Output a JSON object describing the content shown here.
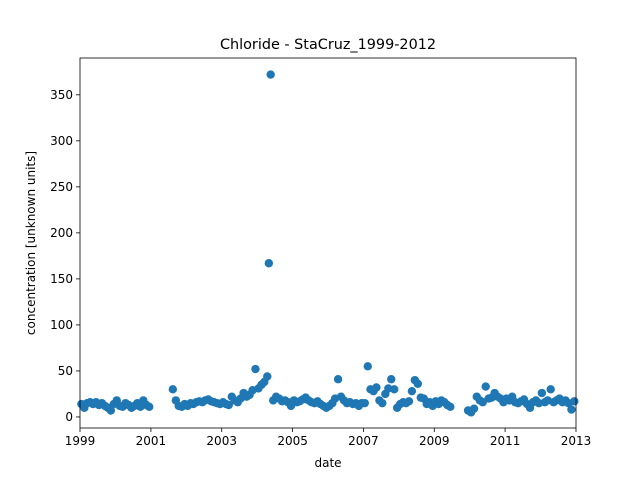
{
  "chart_data": {
    "type": "scatter",
    "title": "Chloride - StaCruz_1999-2012",
    "xlabel": "date",
    "ylabel": "concentration [unknown units]",
    "xlim": [
      "1999-01-01",
      "2013-01-01"
    ],
    "ylim": [
      -12,
      390
    ],
    "x_ticks": [
      "1999",
      "2001",
      "2003",
      "2005",
      "2007",
      "2009",
      "2011",
      "2013"
    ],
    "y_ticks": [
      0,
      50,
      100,
      150,
      200,
      250,
      300,
      350
    ],
    "grid": false,
    "marker_color": "#1f77b4",
    "series": [
      {
        "x": [
          "1999-01-15",
          "1999-02-15",
          "1999-03-15",
          "1999-04-15",
          "1999-05-15",
          "1999-06-15",
          "1999-07-15",
          "1999-08-15",
          "1999-09-15",
          "1999-10-15",
          "1999-11-15",
          "1999-12-15",
          "2000-01-15",
          "2000-02-15",
          "2000-03-15",
          "2000-04-15",
          "2000-05-15",
          "2000-06-15",
          "2000-07-15",
          "2000-08-15",
          "2000-09-15",
          "2000-10-15",
          "2000-11-15",
          "2000-12-15",
          "2001-08-15",
          "2001-09-15",
          "2001-10-15",
          "2001-11-15",
          "2001-12-15",
          "2002-01-15",
          "2002-02-15",
          "2002-03-15",
          "2002-04-15",
          "2002-05-15",
          "2002-06-15",
          "2002-07-15",
          "2002-08-15",
          "2002-09-15",
          "2002-10-15",
          "2002-11-15",
          "2002-12-15",
          "2003-01-15",
          "2003-02-15",
          "2003-03-15",
          "2003-04-15",
          "2003-05-15",
          "2003-06-15",
          "2003-07-15",
          "2003-08-15",
          "2003-09-15",
          "2003-10-15",
          "2003-11-15",
          "2003-12-15",
          "2004-01-15",
          "2004-02-15",
          "2004-03-15",
          "2004-04-15",
          "2004-05-01",
          "2004-05-20",
          "2004-06-15",
          "2004-07-15",
          "2004-08-15",
          "2004-09-15",
          "2004-10-15",
          "2004-11-15",
          "2004-12-15",
          "2005-01-15",
          "2005-02-15",
          "2005-03-15",
          "2005-04-15",
          "2005-05-15",
          "2005-06-15",
          "2005-07-15",
          "2005-08-15",
          "2005-09-15",
          "2005-10-15",
          "2005-11-15",
          "2005-12-15",
          "2006-01-15",
          "2006-02-15",
          "2006-03-15",
          "2006-04-15",
          "2006-05-15",
          "2006-06-15",
          "2006-07-15",
          "2006-08-15",
          "2006-09-15",
          "2006-10-15",
          "2006-11-15",
          "2006-12-15",
          "2007-01-15",
          "2007-02-15",
          "2007-03-15",
          "2007-04-15",
          "2007-05-15",
          "2007-06-15",
          "2007-07-15",
          "2007-08-15",
          "2007-09-15",
          "2007-10-15",
          "2007-11-15",
          "2007-12-15",
          "2008-01-15",
          "2008-02-15",
          "2008-03-15",
          "2008-04-15",
          "2008-05-15",
          "2008-06-15",
          "2008-07-15",
          "2008-08-15",
          "2008-09-15",
          "2008-10-15",
          "2008-11-15",
          "2008-12-15",
          "2009-01-15",
          "2009-02-15",
          "2009-03-15",
          "2009-04-15",
          "2009-05-15",
          "2009-06-15",
          "2009-12-15",
          "2010-01-15",
          "2010-02-15",
          "2010-03-15",
          "2010-04-15",
          "2010-05-15",
          "2010-06-15",
          "2010-07-15",
          "2010-08-15",
          "2010-09-15",
          "2010-10-15",
          "2010-11-15",
          "2010-12-15",
          "2011-01-15",
          "2011-02-15",
          "2011-03-15",
          "2011-04-15",
          "2011-05-15",
          "2011-06-15",
          "2011-07-15",
          "2011-08-15",
          "2011-09-15",
          "2011-10-15",
          "2011-11-15",
          "2011-12-15",
          "2012-01-15",
          "2012-02-15",
          "2012-03-15",
          "2012-04-15",
          "2012-05-15",
          "2012-06-15",
          "2012-07-15",
          "2012-08-15",
          "2012-09-15",
          "2012-10-15",
          "2012-11-15",
          "2012-12-15"
        ],
        "y": [
          14,
          10,
          15,
          16,
          14,
          16,
          13,
          15,
          12,
          10,
          7,
          14,
          18,
          12,
          11,
          15,
          13,
          10,
          12,
          15,
          11,
          18,
          13,
          11,
          30,
          18,
          12,
          11,
          14,
          12,
          15,
          14,
          16,
          17,
          16,
          18,
          19,
          17,
          16,
          15,
          14,
          16,
          14,
          13,
          22,
          18,
          16,
          20,
          26,
          22,
          24,
          29,
          52,
          31,
          35,
          38,
          44,
          167,
          372,
          18,
          22,
          20,
          17,
          18,
          16,
          12,
          18,
          16,
          17,
          19,
          21,
          18,
          16,
          15,
          17,
          14,
          12,
          10,
          12,
          15,
          20,
          41,
          22,
          18,
          15,
          16,
          14,
          15,
          12,
          15,
          15,
          55,
          30,
          28,
          32,
          18,
          15,
          25,
          31,
          41,
          30,
          10,
          14,
          16,
          15,
          17,
          28,
          40,
          36,
          21,
          20,
          14,
          16,
          12,
          17,
          14,
          18,
          16,
          13,
          11,
          7,
          5,
          9,
          22,
          18,
          16,
          33,
          20,
          21,
          26,
          22,
          20,
          16,
          20,
          18,
          22,
          16,
          15,
          17,
          19,
          14,
          10,
          16,
          18,
          15,
          26,
          16,
          18,
          30,
          16,
          18,
          20,
          16,
          18,
          15,
          8,
          17
        ]
      }
    ]
  }
}
